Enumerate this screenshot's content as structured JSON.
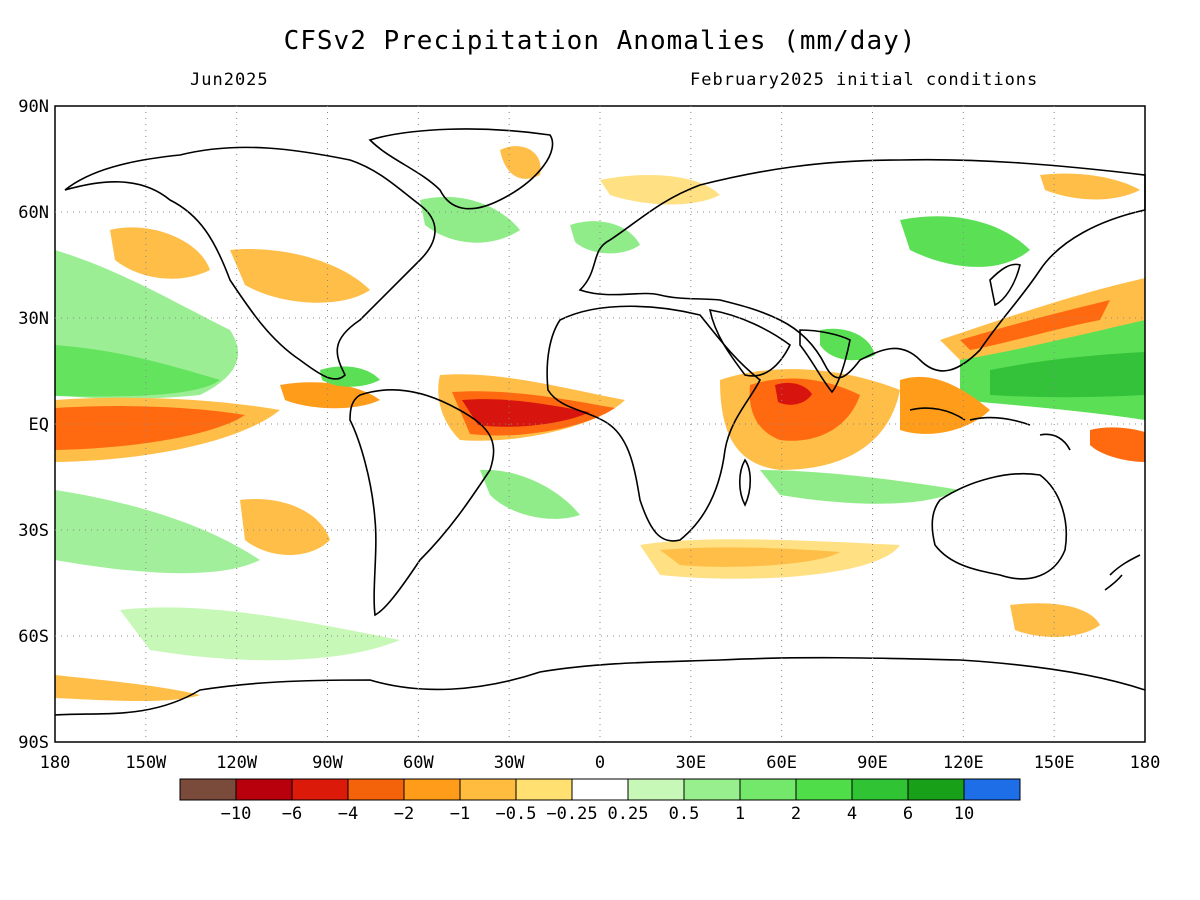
{
  "header": {
    "title": "CFSv2 Precipitation Anomalies (mm/day)",
    "valid_month": "Jun2025",
    "init": "February2025 initial conditions"
  },
  "map": {
    "lat_ticks": [
      "90N",
      "60N",
      "30N",
      "EQ",
      "30S",
      "60S",
      "90S"
    ],
    "lon_ticks": [
      "180",
      "150W",
      "120W",
      "90W",
      "60W",
      "30W",
      "0",
      "30E",
      "60E",
      "90E",
      "120E",
      "150E",
      "180"
    ],
    "colors": {
      "dry_strong": "#d8140e",
      "dry_mod": "#ff6a10",
      "dry_light": "#ffbe48",
      "dry_faint": "#ffe082",
      "wet_faint": "#c8f8b8",
      "wet_light": "#90ec88",
      "wet_mod": "#5be055",
      "wet_strong": "#34c23a",
      "coast": "#000000"
    }
  },
  "colorbar": {
    "colors": [
      "#7a4a3a",
      "#b8000c",
      "#dc1a0a",
      "#f4620a",
      "#ff9c1a",
      "#ffbc3e",
      "#ffe070",
      "#ffffff",
      "#c8f8b8",
      "#98ef8e",
      "#74e86a",
      "#4fde4a",
      "#30c434",
      "#18a018",
      "#1e6ee8"
    ],
    "labels": [
      "−10",
      "−6",
      "−4",
      "−2",
      "−1",
      "−0.5",
      "−0.25",
      "0.25",
      "0.5",
      "1",
      "2",
      "4",
      "6",
      "10"
    ]
  }
}
